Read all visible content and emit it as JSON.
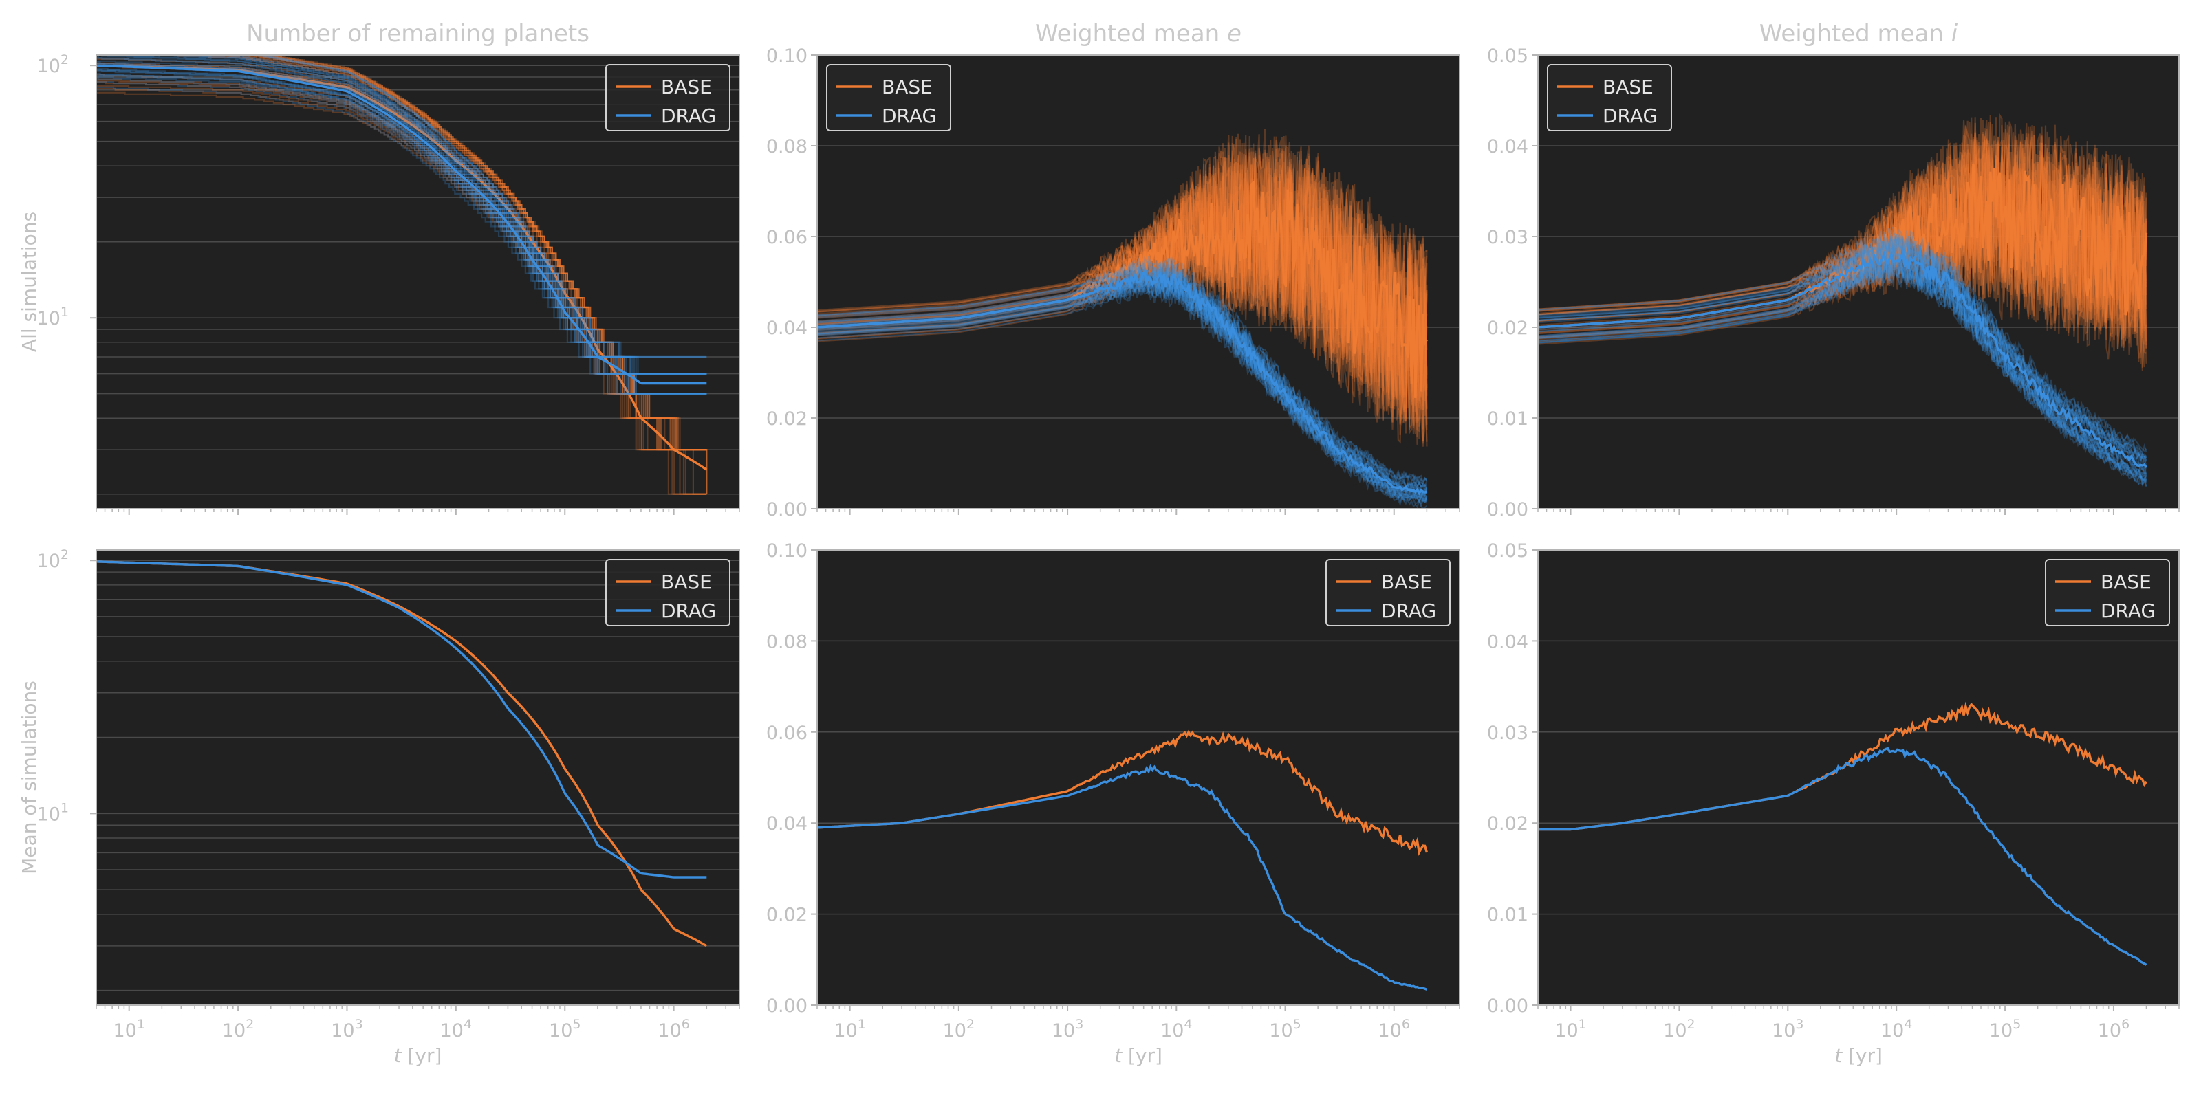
{
  "figure": {
    "colors": {
      "panel_background": "#212121",
      "grid": "#4a4a4a",
      "spine": "#b5b5b5",
      "text": "#c0c0c0",
      "base": "#ef7b32",
      "drag": "#3b8ede"
    },
    "legend_labels": [
      "BASE",
      "DRAG"
    ],
    "x_axis": {
      "scale": "log",
      "range": [
        5,
        4000000
      ],
      "ticks": [
        10,
        100,
        1000,
        10000,
        100000,
        1000000
      ],
      "tick_labels": [
        [
          "10",
          "1"
        ],
        [
          "10",
          "2"
        ],
        [
          "10",
          "3"
        ],
        [
          "10",
          "4"
        ],
        [
          "10",
          "5"
        ],
        [
          "10",
          "6"
        ]
      ],
      "label_var": "t",
      "label_unit": " [yr]"
    },
    "column_titles": [
      {
        "prefix": "Number of remaining planets",
        "var": ""
      },
      {
        "prefix": "Weighted mean ",
        "var": "e"
      },
      {
        "prefix": "Weighted mean ",
        "var": "i"
      }
    ],
    "row_labels": [
      "All simulations",
      "Mean of simulations"
    ]
  },
  "chart_data": [
    {
      "type": "line",
      "row": 0,
      "col": 0,
      "title": "Number of remaining planets",
      "ylabel": "All simulations",
      "yscale": "log",
      "ylim": [
        1.75,
        110
      ],
      "y_ticks": [
        10,
        100
      ],
      "y_tick_labels": [
        [
          "10",
          "1"
        ],
        [
          "10",
          "2"
        ]
      ],
      "grid": "horizontal",
      "legend": "top-right",
      "series": [
        {
          "name": "BASE",
          "x": [
            5,
            100,
            1000,
            10000,
            50000,
            100000,
            200000,
            500000,
            1000000,
            2000000
          ],
          "y": [
            100,
            96,
            82,
            42,
            20,
            12.5,
            7.5,
            4,
            3,
            2.5
          ],
          "spread": 1.25
        },
        {
          "name": "DRAG",
          "x": [
            5,
            100,
            1000,
            10000,
            50000,
            100000,
            200000,
            500000,
            1000000,
            2000000
          ],
          "y": [
            100,
            95,
            79,
            38,
            17,
            10.5,
            7,
            5.5,
            5.5,
            5.5
          ],
          "spread": 1.2
        }
      ]
    },
    {
      "type": "line",
      "row": 0,
      "col": 1,
      "title": "Weighted mean e",
      "ylabel": "",
      "yscale": "linear",
      "ylim": [
        0,
        0.1
      ],
      "y_ticks": [
        0,
        0.02,
        0.04,
        0.06,
        0.08,
        0.1
      ],
      "y_tick_labels": [
        "0.00",
        "0.02",
        "0.04",
        "0.06",
        "0.08",
        "0.10"
      ],
      "grid": "horizontal",
      "legend": "top-left",
      "series": [
        {
          "name": "BASE",
          "x": [
            5,
            100,
            1000,
            5000,
            15000,
            30000,
            100000,
            300000,
            1000000,
            2000000
          ],
          "y": [
            0.04,
            0.042,
            0.046,
            0.055,
            0.06,
            0.062,
            0.06,
            0.05,
            0.04,
            0.035
          ],
          "spread": 0.004,
          "noise": [
            0,
            0,
            0,
            0.004,
            0.012,
            0.018,
            0.02,
            0.022,
            0.022,
            0.022
          ]
        },
        {
          "name": "DRAG",
          "x": [
            5,
            100,
            1000,
            5000,
            10000,
            30000,
            100000,
            300000,
            1000000,
            2000000
          ],
          "y": [
            0.04,
            0.042,
            0.046,
            0.051,
            0.05,
            0.04,
            0.025,
            0.013,
            0.005,
            0.0035
          ],
          "spread": 0.003,
          "noise": [
            0,
            0,
            0,
            0.002,
            0.003,
            0.003,
            0.002,
            0.0015,
            0.001,
            0.0008
          ]
        }
      ]
    },
    {
      "type": "line",
      "row": 0,
      "col": 2,
      "title": "Weighted mean i",
      "ylabel": "",
      "yscale": "linear",
      "ylim": [
        0,
        0.05
      ],
      "y_ticks": [
        0,
        0.01,
        0.02,
        0.03,
        0.04,
        0.05
      ],
      "y_tick_labels": [
        "0.00",
        "0.01",
        "0.02",
        "0.03",
        "0.04",
        "0.05"
      ],
      "grid": "horizontal",
      "legend": "top-left",
      "series": [
        {
          "name": "BASE",
          "x": [
            5,
            100,
            1000,
            5000,
            15000,
            50000,
            200000,
            1000000,
            2000000
          ],
          "y": [
            0.02,
            0.021,
            0.023,
            0.027,
            0.031,
            0.033,
            0.031,
            0.028,
            0.026
          ],
          "spread": 0.002,
          "noise": [
            0,
            0,
            0,
            0.002,
            0.005,
            0.009,
            0.01,
            0.01,
            0.01
          ]
        },
        {
          "name": "DRAG",
          "x": [
            5,
            100,
            1000,
            5000,
            10000,
            30000,
            100000,
            300000,
            1000000,
            2000000
          ],
          "y": [
            0.02,
            0.021,
            0.023,
            0.027,
            0.028,
            0.025,
            0.017,
            0.011,
            0.0065,
            0.0045
          ],
          "spread": 0.002,
          "noise": [
            0,
            0,
            0,
            0.001,
            0.0015,
            0.0015,
            0.001,
            0.0008,
            0.0006,
            0.0005
          ]
        }
      ]
    },
    {
      "type": "line",
      "row": 1,
      "col": 0,
      "title": "",
      "ylabel": "Mean of simulations",
      "yscale": "log",
      "ylim": [
        1.75,
        110
      ],
      "y_ticks": [
        10,
        100
      ],
      "y_tick_labels": [
        [
          "10",
          "1"
        ],
        [
          "10",
          "2"
        ]
      ],
      "grid": "horizontal",
      "legend": "top-right",
      "series": [
        {
          "name": "BASE",
          "x": [
            5,
            100,
            1000,
            3000,
            10000,
            30000,
            100000,
            200000,
            500000,
            1000000,
            2000000
          ],
          "y": [
            99,
            95,
            81,
            66,
            48,
            30,
            15,
            9,
            5,
            3.5,
            3
          ],
          "spread": 0
        },
        {
          "name": "DRAG",
          "x": [
            5,
            100,
            1000,
            3000,
            10000,
            30000,
            100000,
            200000,
            500000,
            1000000,
            2000000
          ],
          "y": [
            99,
            95,
            80,
            65,
            45,
            26,
            12,
            7.5,
            5.8,
            5.6,
            5.6
          ],
          "spread": 0
        }
      ]
    },
    {
      "type": "line",
      "row": 1,
      "col": 1,
      "title": "",
      "ylabel": "",
      "yscale": "linear",
      "ylim": [
        0,
        0.1
      ],
      "y_ticks": [
        0,
        0.02,
        0.04,
        0.06,
        0.08,
        0.1
      ],
      "y_tick_labels": [
        "0.00",
        "0.02",
        "0.04",
        "0.06",
        "0.08",
        "0.10"
      ],
      "grid": "horizontal",
      "legend": "top-right",
      "series": [
        {
          "name": "BASE",
          "x": [
            5,
            30,
            100,
            1000,
            3000,
            10000,
            13000,
            20000,
            30000,
            100000,
            300000,
            1000000,
            2000000
          ],
          "y": [
            0.039,
            0.04,
            0.042,
            0.047,
            0.053,
            0.058,
            0.06,
            0.058,
            0.059,
            0.054,
            0.042,
            0.037,
            0.034
          ],
          "spread": 0,
          "noise": [
            0,
            0,
            0,
            0,
            0.0005,
            0.0008,
            0.001,
            0.001,
            0.001,
            0.001,
            0.001,
            0.0012,
            0.0012
          ]
        },
        {
          "name": "DRAG",
          "x": [
            5,
            30,
            100,
            1000,
            3000,
            6000,
            10000,
            20000,
            50000,
            100000,
            300000,
            1000000,
            2000000
          ],
          "y": [
            0.039,
            0.04,
            0.042,
            0.046,
            0.05,
            0.052,
            0.05,
            0.047,
            0.036,
            0.02,
            0.012,
            0.005,
            0.0035
          ],
          "spread": 0,
          "noise": [
            0,
            0,
            0,
            0,
            0.0004,
            0.0005,
            0.0005,
            0.0006,
            0.0005,
            0.0004,
            0.0003,
            0.0002,
            0.0001
          ]
        }
      ]
    },
    {
      "type": "line",
      "row": 1,
      "col": 2,
      "title": "",
      "ylabel": "",
      "yscale": "linear",
      "ylim": [
        0,
        0.05
      ],
      "y_ticks": [
        0,
        0.01,
        0.02,
        0.03,
        0.04,
        0.05
      ],
      "y_tick_labels": [
        "0.00",
        "0.01",
        "0.02",
        "0.03",
        "0.04",
        "0.05"
      ],
      "grid": "horizontal",
      "legend": "top-right",
      "series": [
        {
          "name": "BASE",
          "x": [
            5,
            10,
            30,
            100,
            1000,
            3000,
            10000,
            20000,
            50000,
            100000,
            300000,
            1000000,
            2000000
          ],
          "y": [
            0.0193,
            0.0193,
            0.02,
            0.021,
            0.023,
            0.026,
            0.03,
            0.031,
            0.0325,
            0.031,
            0.029,
            0.026,
            0.0245
          ],
          "spread": 0,
          "noise": [
            0,
            0,
            0,
            0,
            0,
            0.0003,
            0.0004,
            0.0005,
            0.0006,
            0.0006,
            0.0006,
            0.0006,
            0.0007
          ]
        },
        {
          "name": "DRAG",
          "x": [
            5,
            10,
            30,
            100,
            1000,
            3000,
            8000,
            15000,
            30000,
            100000,
            300000,
            1000000,
            2000000
          ],
          "y": [
            0.0193,
            0.0193,
            0.02,
            0.021,
            0.023,
            0.026,
            0.028,
            0.0275,
            0.025,
            0.017,
            0.011,
            0.0065,
            0.0045
          ],
          "spread": 0,
          "noise": [
            0,
            0,
            0,
            0,
            0,
            0.0003,
            0.0003,
            0.0003,
            0.0003,
            0.0002,
            0.0002,
            0.0001,
            0.0001
          ]
        }
      ]
    }
  ]
}
